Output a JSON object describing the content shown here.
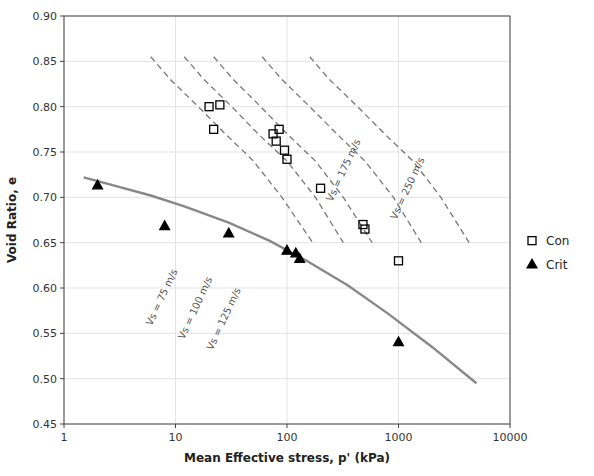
{
  "chart_data": {
    "type": "scatter",
    "xlabel": "Mean Effective stress, p' (kPa)",
    "ylabel": "Void Ratio, e",
    "log": "x",
    "grid": true,
    "legend": "right",
    "xlim": [
      1,
      10000
    ],
    "xticks": [
      1,
      10,
      100,
      1000,
      10000
    ],
    "ylim": [
      0.45,
      0.9
    ],
    "yticks": [
      0.45,
      {
        "value": 0.5,
        "label": "0.50"
      },
      0.55,
      {
        "value": 0.6,
        "label": "0.60"
      },
      0.65,
      {
        "value": 0.7,
        "label": "0.70"
      },
      0.75,
      {
        "value": 0.8,
        "label": "0.80"
      },
      0.85,
      {
        "value": 0.9,
        "label": "0.90"
      }
    ],
    "series": [
      {
        "name": "Con",
        "type": "scatter",
        "marker": "open-square",
        "color": "#000000",
        "x": [
          20,
          22,
          25,
          75,
          80,
          85,
          95,
          100,
          200,
          480,
          500,
          1000
        ],
        "values": [
          0.8,
          0.775,
          0.802,
          0.77,
          0.762,
          0.775,
          0.752,
          0.742,
          0.71,
          0.67,
          0.665,
          0.63
        ]
      },
      {
        "name": "Crit",
        "type": "scatter",
        "marker": "triangle",
        "color": "#000000",
        "x": [
          2,
          8,
          30,
          100,
          120,
          130,
          1000
        ],
        "values": [
          0.713,
          0.668,
          0.66,
          0.641,
          0.638,
          0.632,
          0.54
        ]
      },
      {
        "type": "line",
        "line_style": "solid",
        "color": "#888888",
        "x": [
          1.5,
          3,
          6,
          12,
          30,
          70,
          150,
          350,
          800,
          2000,
          5000
        ],
        "values": [
          0.722,
          0.712,
          0.702,
          0.69,
          0.672,
          0.652,
          0.63,
          0.603,
          0.572,
          0.535,
          0.495
        ]
      },
      {
        "type": "line",
        "line_style": "dashed",
        "color": "#777777",
        "x": [
          6,
          9,
          16,
          28,
          50,
          90,
          170
        ],
        "values": [
          0.855,
          0.83,
          0.8,
          0.77,
          0.74,
          0.7,
          0.65
        ]
      },
      {
        "type": "line",
        "line_style": "dashed",
        "color": "#777777",
        "x": [
          12,
          18,
          32,
          55,
          100,
          180,
          320
        ],
        "values": [
          0.855,
          0.83,
          0.8,
          0.77,
          0.74,
          0.7,
          0.65
        ]
      },
      {
        "type": "line",
        "line_style": "dashed",
        "color": "#777777",
        "x": [
          22,
          33,
          58,
          100,
          180,
          320,
          580
        ],
        "values": [
          0.855,
          0.83,
          0.8,
          0.77,
          0.74,
          0.7,
          0.65
        ]
      },
      {
        "type": "line",
        "line_style": "dashed",
        "color": "#777777",
        "x": [
          60,
          90,
          160,
          280,
          500,
          900,
          1600
        ],
        "values": [
          0.855,
          0.83,
          0.8,
          0.77,
          0.74,
          0.7,
          0.65
        ]
      },
      {
        "type": "line",
        "line_style": "dashed",
        "color": "#777777",
        "x": [
          160,
          240,
          430,
          750,
          1350,
          2400,
          4300
        ],
        "values": [
          0.855,
          0.83,
          0.8,
          0.77,
          0.74,
          0.7,
          0.65
        ]
      }
    ],
    "annotations": [
      {
        "text": "Vs = 75 m/s",
        "x": 7.5,
        "y": 0.59
      },
      {
        "text": "Vs = 100 m/s",
        "x": 15,
        "y": 0.578
      },
      {
        "text": "Vs = 125 m/s",
        "x": 27,
        "y": 0.566
      },
      {
        "text": "Vs = 175 m/s",
        "x": 320,
        "y": 0.73
      },
      {
        "text": "Vs = 250 m/s",
        "x": 1200,
        "y": 0.71
      }
    ]
  }
}
